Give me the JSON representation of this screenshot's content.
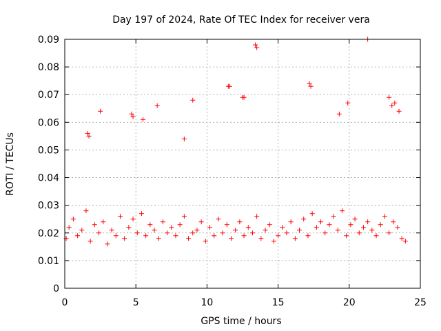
{
  "chart_data": {
    "type": "scatter",
    "title": "Day 197 of 2024, Rate Of TEC Index for receiver vera",
    "xlabel": "GPS time / hours",
    "ylabel": "ROTI / TECUs",
    "xlim": [
      0,
      25
    ],
    "ylim": [
      0,
      0.09
    ],
    "xticks": [
      0,
      5,
      10,
      15,
      20,
      25
    ],
    "yticks": [
      0,
      0.01,
      0.02,
      0.03,
      0.04,
      0.05,
      0.06,
      0.07,
      0.08,
      0.09
    ],
    "xtick_labels": [
      "0",
      "5",
      "10",
      "15",
      "20",
      "25"
    ],
    "ytick_labels": [
      "0",
      "0.01",
      "0.02",
      "0.03",
      "0.04",
      "0.05",
      "0.06",
      "0.07",
      "0.08",
      "0.09"
    ],
    "grid": true,
    "marker": "+",
    "marker_color": "#ff0000",
    "series": [
      {
        "name": "ROTI",
        "x": [
          0.1,
          0.3,
          0.6,
          0.9,
          1.2,
          1.5,
          1.8,
          2.1,
          2.4,
          2.7,
          3.0,
          3.3,
          3.6,
          3.9,
          4.2,
          4.5,
          4.8,
          5.1,
          5.4,
          5.7,
          6.0,
          6.3,
          6.6,
          6.9,
          7.2,
          7.5,
          7.8,
          8.1,
          8.4,
          8.7,
          9.0,
          9.3,
          9.6,
          9.9,
          10.2,
          10.5,
          10.8,
          11.1,
          11.4,
          11.7,
          12.0,
          12.3,
          12.6,
          12.9,
          13.2,
          13.5,
          13.8,
          14.1,
          14.4,
          14.7,
          15.0,
          15.3,
          15.6,
          15.9,
          16.2,
          16.5,
          16.8,
          17.1,
          17.4,
          17.7,
          18.0,
          18.3,
          18.6,
          18.9,
          19.2,
          19.5,
          19.8,
          20.1,
          20.4,
          20.7,
          21.0,
          21.3,
          21.6,
          21.9,
          22.2,
          22.5,
          22.8,
          23.1,
          23.4,
          23.7,
          23.95,
          1.6,
          1.7,
          2.5,
          4.7,
          4.8,
          5.5,
          6.5,
          8.4,
          9.0,
          11.5,
          11.6,
          12.5,
          12.6,
          13.4,
          13.5,
          17.2,
          17.3,
          19.3,
          19.9,
          21.3,
          22.8,
          23.0,
          23.2,
          23.5
        ],
        "y": [
          0.018,
          0.022,
          0.025,
          0.019,
          0.021,
          0.028,
          0.017,
          0.023,
          0.02,
          0.024,
          0.016,
          0.021,
          0.019,
          0.026,
          0.018,
          0.022,
          0.025,
          0.02,
          0.027,
          0.019,
          0.023,
          0.021,
          0.018,
          0.024,
          0.02,
          0.022,
          0.019,
          0.023,
          0.026,
          0.018,
          0.02,
          0.021,
          0.024,
          0.017,
          0.022,
          0.019,
          0.025,
          0.02,
          0.023,
          0.018,
          0.021,
          0.024,
          0.019,
          0.022,
          0.02,
          0.026,
          0.018,
          0.021,
          0.023,
          0.017,
          0.019,
          0.022,
          0.02,
          0.024,
          0.018,
          0.021,
          0.025,
          0.019,
          0.027,
          0.022,
          0.024,
          0.02,
          0.023,
          0.026,
          0.021,
          0.028,
          0.019,
          0.023,
          0.025,
          0.02,
          0.022,
          0.024,
          0.021,
          0.019,
          0.023,
          0.026,
          0.02,
          0.024,
          0.022,
          0.018,
          0.017,
          0.056,
          0.055,
          0.064,
          0.063,
          0.062,
          0.061,
          0.066,
          0.054,
          0.068,
          0.073,
          0.073,
          0.069,
          0.069,
          0.088,
          0.087,
          0.074,
          0.073,
          0.063,
          0.067,
          0.09,
          0.069,
          0.066,
          0.067,
          0.064
        ]
      }
    ]
  }
}
